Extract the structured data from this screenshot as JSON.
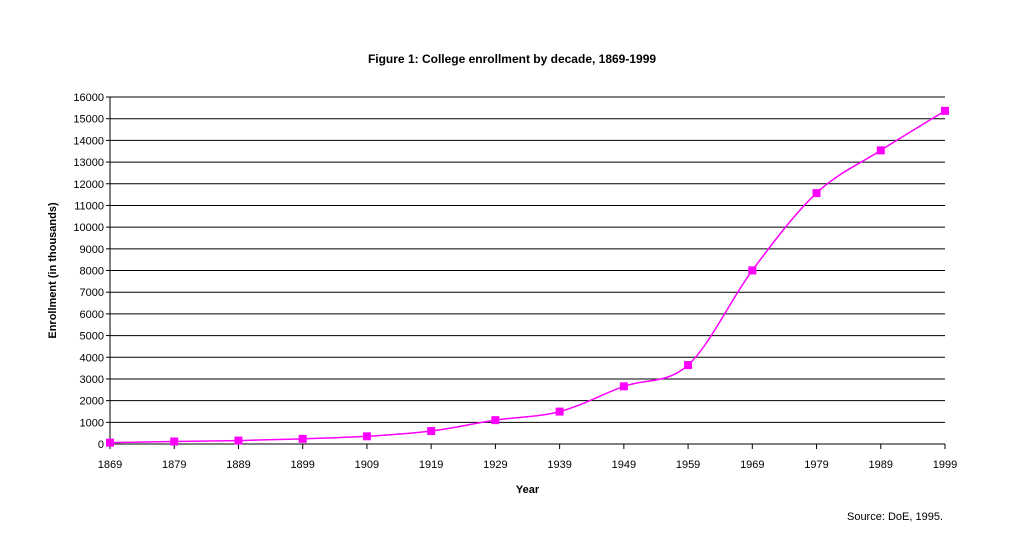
{
  "title": "Figure 1:  College enrollment by decade, 1869-1999",
  "source": "Source:  DoE, 1995.",
  "colors": {
    "series": "#ff00ff",
    "grid": "#000000"
  },
  "chart_data": {
    "type": "line",
    "title": "Figure 1:  College enrollment by decade, 1869-1999",
    "xlabel": "Year",
    "ylabel": "Enrollment (in thousands)",
    "x": [
      1869,
      1879,
      1889,
      1899,
      1909,
      1919,
      1929,
      1939,
      1949,
      1959,
      1969,
      1979,
      1989,
      1999
    ],
    "series": [
      {
        "values": [
          63,
          116,
          157,
          238,
          355,
          598,
          1101,
          1494,
          2659,
          3640,
          8005,
          11570,
          13539,
          15360
        ]
      }
    ],
    "ylim": [
      0,
      16000
    ],
    "yticks": [
      0,
      1000,
      2000,
      3000,
      4000,
      5000,
      6000,
      7000,
      8000,
      9000,
      10000,
      11000,
      12000,
      13000,
      14000,
      15000,
      16000
    ],
    "grid": true,
    "legend": "none",
    "marker": "square"
  }
}
